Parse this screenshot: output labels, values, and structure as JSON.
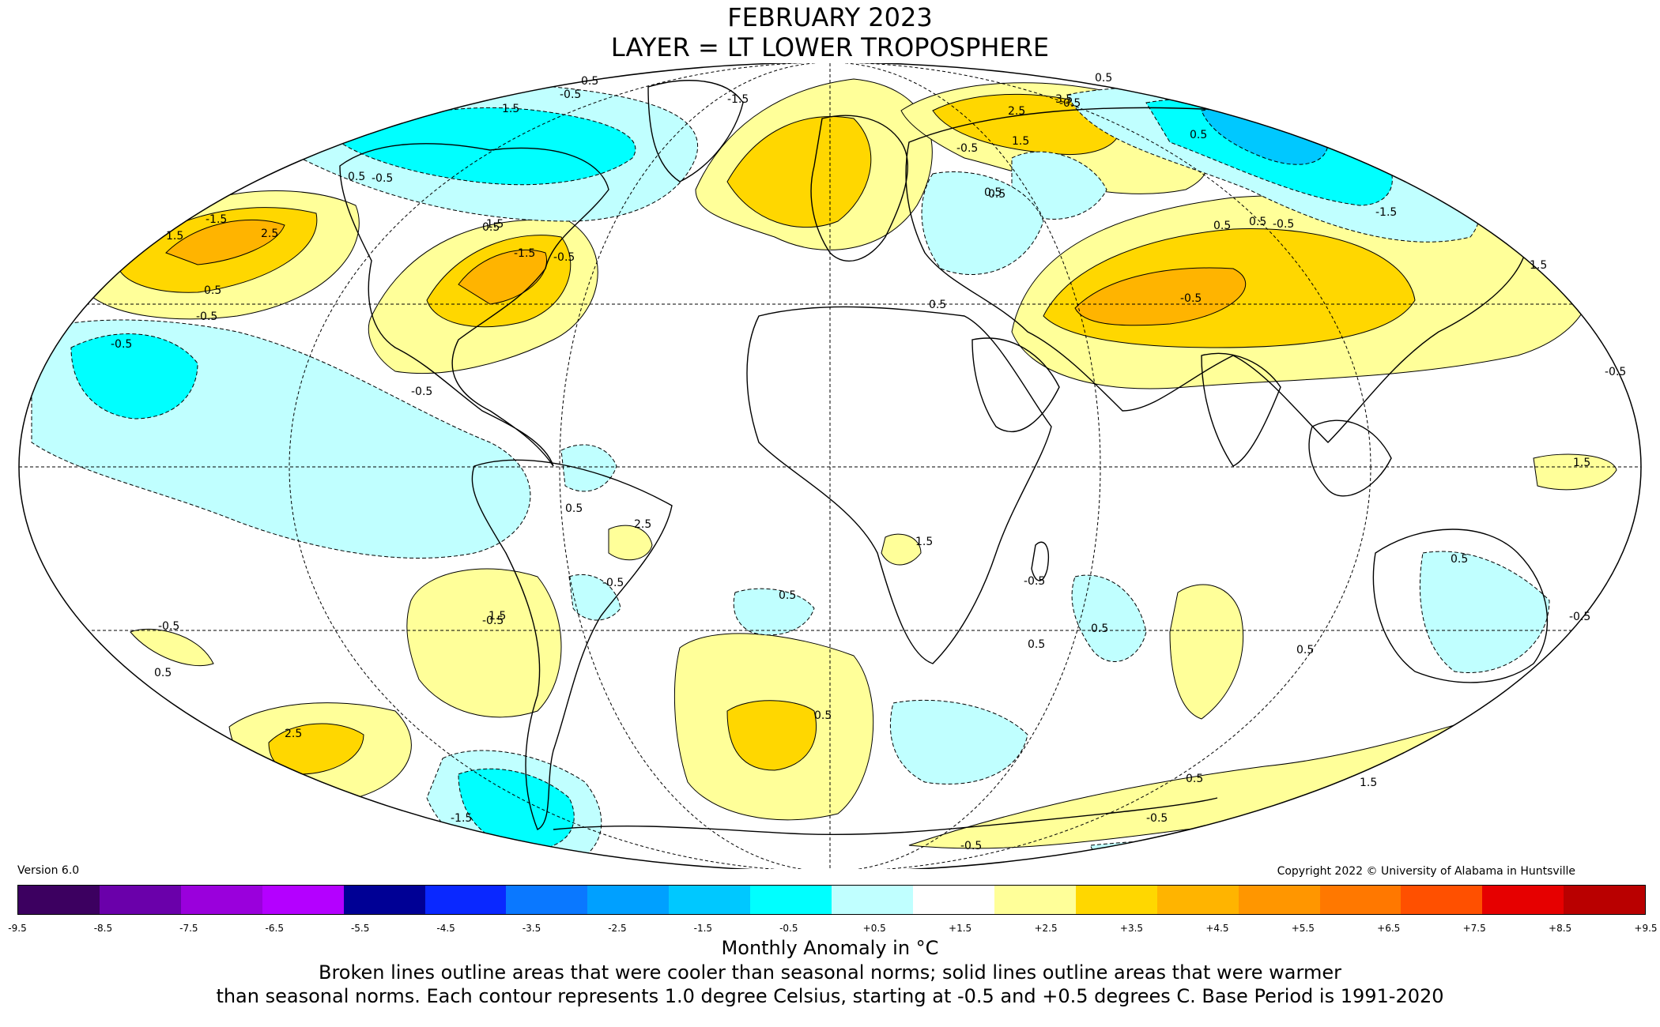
{
  "header": {
    "title_line1": "FEBRUARY 2023",
    "title_line2": "LAYER = LT LOWER TROPOSPHERE"
  },
  "footer": {
    "version": "Version 6.0",
    "copyright": "Copyright 2022 © University of Alabama in Huntsville",
    "units": "Monthly Anomaly in °C",
    "note_line1": "Broken lines outline areas that were cooler than seasonal norms; solid lines outline areas that were warmer",
    "note_line2": "than seasonal norms. Each contour represents 1.0 degree Celsius, starting at -0.5 and +0.5 degrees C. Base Period is 1991-2020"
  },
  "colorbar": {
    "tick_labels": [
      "-9.5",
      "-8.5",
      "-7.5",
      "-6.5",
      "-5.5",
      "-4.5",
      "-3.5",
      "-2.5",
      "-1.5",
      "-0.5",
      "+0.5",
      "+1.5",
      "+2.5",
      "+3.5",
      "+4.5",
      "+5.5",
      "+6.5",
      "+7.5",
      "+8.5",
      "+9.5"
    ],
    "colors": [
      "#3c0060",
      "#6a00aa",
      "#9a00dc",
      "#b400ff",
      "#000095",
      "#0a28ff",
      "#0a78ff",
      "#00a0ff",
      "#00c8ff",
      "#00ffff",
      "#c0ffff",
      "#ffffff",
      "#ffff99",
      "#ffd700",
      "#ffb400",
      "#ff9600",
      "#ff7800",
      "#ff5000",
      "#e60000",
      "#b90000"
    ]
  },
  "map_colors": {
    "cool_1": "#c0ffff",
    "cool_2": "#00ffff",
    "cool_3": "#00c8ff",
    "warm_1": "#ffff99",
    "warm_2": "#ffd700",
    "warm_3": "#ffb400",
    "land_outline": "#000000"
  },
  "contour_labels": [
    "0.5",
    "-0.5",
    "1.5",
    "-1.5",
    "2.5",
    "3.5",
    "0.5",
    "-0.5",
    "1.5",
    "-1.5",
    "2.5",
    "0.5",
    "-0.5",
    "1.5",
    "-1.5",
    "0.5",
    "-0.5",
    "-0.5",
    "0.5",
    "0.5",
    "-0.5",
    "1.5",
    "0.5",
    "-0.5",
    "0.5",
    "-1.5",
    "1.5",
    "0.5",
    "-0.5",
    "-0.5",
    "0.5",
    "0.5",
    "-0.5",
    "1.5",
    "2.5",
    "-0.5",
    "0.5",
    "-0.5",
    "0.5",
    "0.5",
    "-0.5",
    "0.5",
    "1.5",
    "0.5",
    "-0.5",
    "-0.5",
    "0.5",
    "2.5",
    "1.5",
    "0.5",
    "-0.5",
    "0.5",
    "-0.5",
    "0.5",
    "-0.5",
    "1.5",
    "-1.5"
  ]
}
